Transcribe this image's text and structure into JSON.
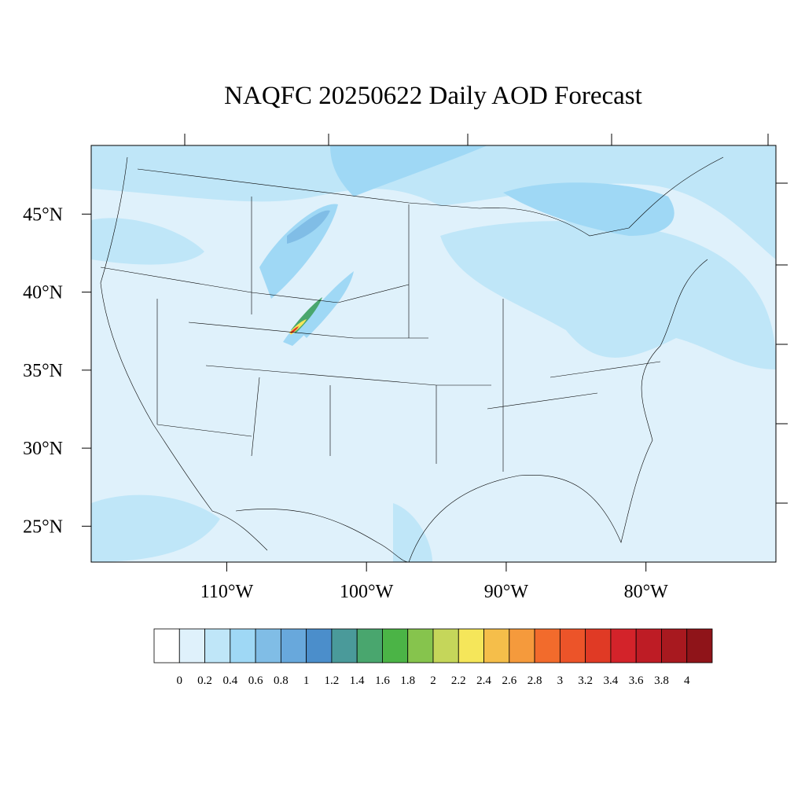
{
  "chart_data": {
    "type": "map",
    "title": "NAQFC 20250622 Daily AOD Forecast",
    "xlim": [
      -119.7,
      -70.7
    ],
    "ylim": [
      22.7,
      49.4
    ],
    "xticks": [
      {
        "value": -110,
        "label": "110°W"
      },
      {
        "value": -100,
        "label": "100°W"
      },
      {
        "value": -90,
        "label": "90°W"
      },
      {
        "value": -80,
        "label": "80°W"
      }
    ],
    "yticks": [
      {
        "value": 25,
        "label": "25°N"
      },
      {
        "value": 30,
        "label": "30°N"
      },
      {
        "value": 35,
        "label": "35°N"
      },
      {
        "value": 40,
        "label": "40°N"
      },
      {
        "value": 45,
        "label": "45°N"
      }
    ],
    "colorbar": {
      "levels": [
        0,
        0.2,
        0.4,
        0.6,
        0.8,
        1,
        1.2,
        1.4,
        1.6,
        1.8,
        2,
        2.2,
        2.4,
        2.6,
        2.8,
        3,
        3.2,
        3.4,
        3.6,
        3.8,
        4
      ],
      "colors": [
        "#ffffff",
        "#dff1fb",
        "#bfe6f8",
        "#9fd8f5",
        "#80bde6",
        "#68a8dc",
        "#4b8ecb",
        "#4a9a9a",
        "#49a66e",
        "#4bb446",
        "#86c44d",
        "#c5d65a",
        "#f5e65a",
        "#f5be4a",
        "#f59a3c",
        "#f26b2c",
        "#ec5429",
        "#e03a25",
        "#d3232a",
        "#be1c25",
        "#a8191f",
        "#8f1419"
      ]
    }
  }
}
